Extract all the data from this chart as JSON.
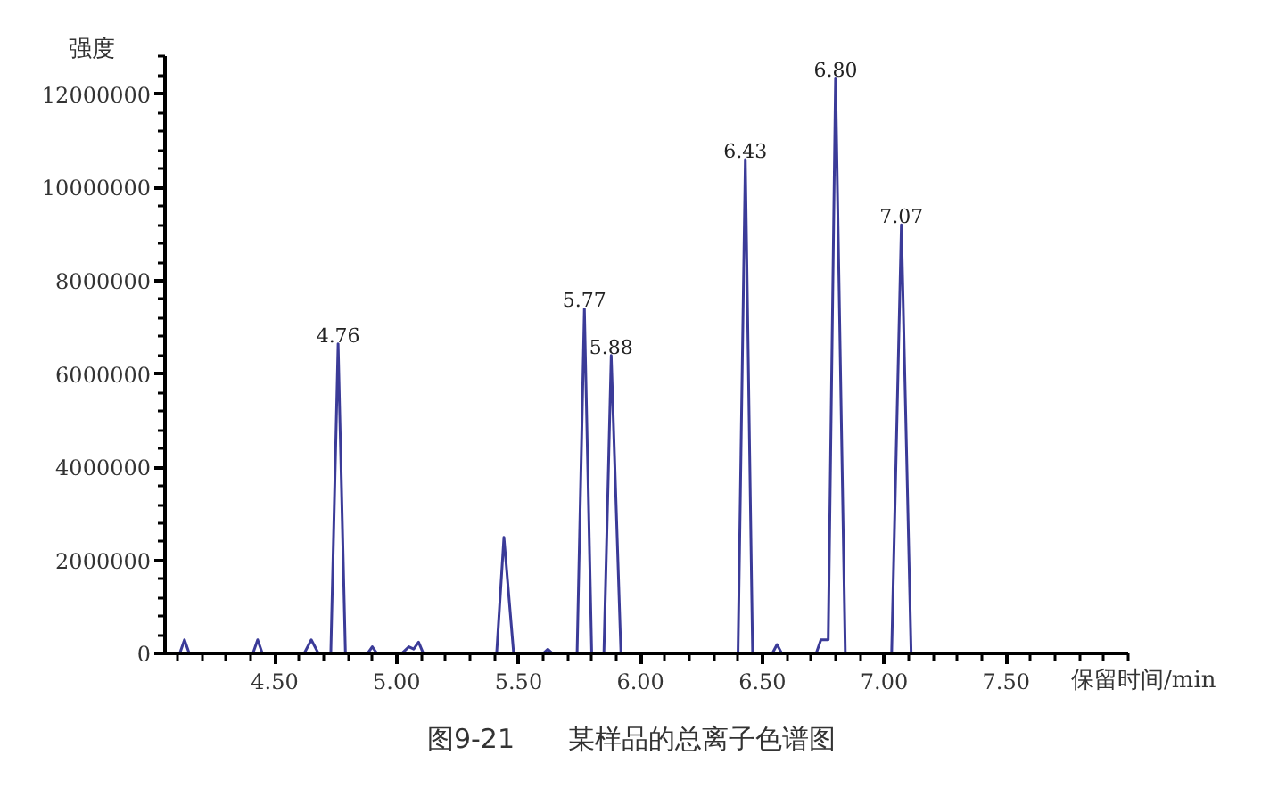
{
  "chart_data": {
    "type": "line",
    "title": "图9-21　　某样品的总离子色谱图",
    "xlabel": "保留时间/min",
    "ylabel": "强度",
    "x": [
      4.11,
      4.13,
      4.15,
      4.41,
      4.43,
      4.45,
      4.62,
      4.65,
      4.68,
      4.73,
      4.76,
      4.79,
      4.88,
      4.9,
      4.92,
      5.02,
      5.05,
      5.07,
      5.09,
      5.11,
      5.41,
      5.44,
      5.48,
      5.6,
      5.62,
      5.64,
      5.74,
      5.77,
      5.8,
      5.85,
      5.88,
      5.92,
      6.4,
      6.43,
      6.46,
      6.54,
      6.56,
      6.58,
      6.72,
      6.74,
      6.77,
      6.8,
      6.84,
      7.03,
      7.07,
      7.11
    ],
    "series": [
      {
        "color": "#3b3b98",
        "values": [
          0,
          300000,
          0,
          0,
          300000,
          0,
          0,
          300000,
          0,
          0,
          6650000,
          0,
          0,
          150000,
          0,
          0,
          150000,
          100000,
          250000,
          0,
          0,
          2500000,
          0,
          0,
          100000,
          0,
          0,
          7400000,
          0,
          0,
          6400000,
          0,
          0,
          10600000,
          0,
          0,
          200000,
          0,
          0,
          300000,
          300000,
          12350000,
          0,
          0,
          9200000,
          0
        ]
      }
    ],
    "xlim": [
      4.05,
      8.0
    ],
    "xticks": [
      {
        "value": 4.5,
        "label": "4.50"
      },
      {
        "value": 5.0,
        "label": "5.00"
      },
      {
        "value": 5.5,
        "label": "5.50"
      },
      {
        "value": 6.0,
        "label": "6.00"
      },
      {
        "value": 6.5,
        "label": "6.50"
      },
      {
        "value": 7.0,
        "label": "7.00"
      },
      {
        "value": 7.5,
        "label": "7.50"
      }
    ],
    "ylim": [
      0,
      12800000
    ],
    "yticks": [
      0,
      2000000,
      4000000,
      6000000,
      8000000,
      10000000,
      12000000
    ],
    "grid": false,
    "marker": "none",
    "line_style": "solid",
    "annotations": [
      {
        "text": "4.76",
        "x": 4.76,
        "y": 6650000
      },
      {
        "text": "5.77",
        "x": 5.77,
        "y": 7400000
      },
      {
        "text": "5.88",
        "x": 5.88,
        "y": 6400000
      },
      {
        "text": "6.43",
        "x": 6.43,
        "y": 10600000
      },
      {
        "text": "6.80",
        "x": 6.8,
        "y": 12350000
      },
      {
        "text": "7.07",
        "x": 7.07,
        "y": 9200000
      }
    ]
  }
}
